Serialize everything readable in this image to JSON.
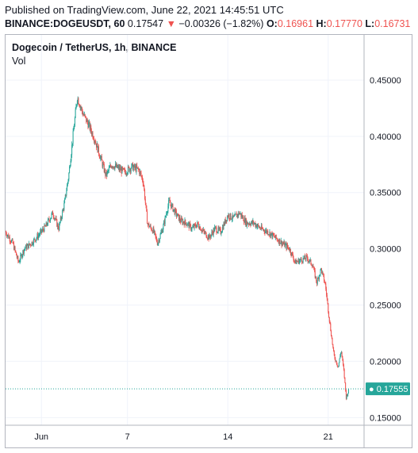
{
  "header": {
    "published": "Published on TradingView.com, June 22, 2021 14:45:51 UTC",
    "symbol_line": "BINANCE:DOGEUSDT, 60",
    "last_price": "0.17547",
    "change_arrow": "▼",
    "change": "−0.00326 (−1.82%)",
    "o_label": "O:",
    "o_value": "0.16961",
    "h_label": "H:",
    "h_value": "0.17770",
    "l_label": "L:",
    "l_value": "0.16731"
  },
  "chart_data": {
    "type": "candlestick",
    "title": "Dogecoin / TetherUS, 1h, BINANCE",
    "indicator_label": "Vol",
    "y_ticks": [
      "0.45000",
      "0.40000",
      "0.35000",
      "0.30000",
      "0.25000",
      "0.20000",
      "0.15000"
    ],
    "y_tick_values": [
      0.45,
      0.4,
      0.35,
      0.3,
      0.25,
      0.2,
      0.15
    ],
    "ylim": [
      0.134,
      0.469
    ],
    "x_ticks": [
      "Jun",
      "7",
      "14",
      "21"
    ],
    "x_tick_days": [
      1,
      7,
      14,
      21
    ],
    "xlim_days": [
      -1.5,
      23.5
    ],
    "last_price_label": "0.17555",
    "last_price_value": 0.17555,
    "up_color": "#26a69a",
    "down_color": "#ef5350",
    "grid": true,
    "price_path": [
      [
        -1.5,
        0.315
      ],
      [
        -1.0,
        0.305
      ],
      [
        -0.6,
        0.288
      ],
      [
        -0.2,
        0.3
      ],
      [
        0.3,
        0.305
      ],
      [
        0.8,
        0.312
      ],
      [
        1.3,
        0.32
      ],
      [
        1.8,
        0.332
      ],
      [
        2.2,
        0.318
      ],
      [
        2.6,
        0.34
      ],
      [
        2.9,
        0.365
      ],
      [
        3.2,
        0.4
      ],
      [
        3.5,
        0.435
      ],
      [
        3.9,
        0.42
      ],
      [
        4.3,
        0.41
      ],
      [
        4.7,
        0.398
      ],
      [
        5.1,
        0.382
      ],
      [
        5.5,
        0.365
      ],
      [
        5.9,
        0.375
      ],
      [
        6.3,
        0.372
      ],
      [
        6.8,
        0.368
      ],
      [
        7.3,
        0.373
      ],
      [
        7.8,
        0.37
      ],
      [
        8.1,
        0.36
      ],
      [
        8.4,
        0.322
      ],
      [
        8.8,
        0.316
      ],
      [
        9.1,
        0.305
      ],
      [
        9.5,
        0.32
      ],
      [
        9.9,
        0.342
      ],
      [
        10.3,
        0.333
      ],
      [
        10.7,
        0.325
      ],
      [
        11.1,
        0.323
      ],
      [
        11.5,
        0.318
      ],
      [
        11.9,
        0.322
      ],
      [
        12.3,
        0.315
      ],
      [
        12.7,
        0.31
      ],
      [
        13.1,
        0.318
      ],
      [
        13.5,
        0.315
      ],
      [
        14.0,
        0.33
      ],
      [
        14.4,
        0.327
      ],
      [
        14.8,
        0.332
      ],
      [
        15.3,
        0.323
      ],
      [
        15.8,
        0.323
      ],
      [
        16.3,
        0.318
      ],
      [
        16.8,
        0.315
      ],
      [
        17.3,
        0.31
      ],
      [
        17.8,
        0.305
      ],
      [
        18.3,
        0.3
      ],
      [
        18.7,
        0.288
      ],
      [
        19.1,
        0.29
      ],
      [
        19.5,
        0.292
      ],
      [
        19.9,
        0.286
      ],
      [
        20.2,
        0.27
      ],
      [
        20.5,
        0.282
      ],
      [
        20.8,
        0.268
      ],
      [
        21.1,
        0.235
      ],
      [
        21.4,
        0.205
      ],
      [
        21.7,
        0.195
      ],
      [
        21.9,
        0.21
      ],
      [
        22.1,
        0.19
      ],
      [
        22.25,
        0.168
      ],
      [
        22.45,
        0.175
      ]
    ]
  }
}
